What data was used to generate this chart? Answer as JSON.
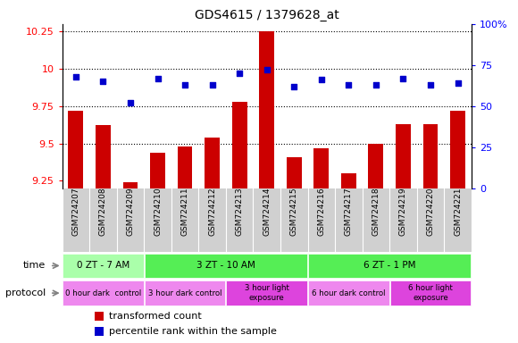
{
  "title": "GDS4615 / 1379628_at",
  "samples": [
    "GSM724207",
    "GSM724208",
    "GSM724209",
    "GSM724210",
    "GSM724211",
    "GSM724212",
    "GSM724213",
    "GSM724214",
    "GSM724215",
    "GSM724216",
    "GSM724217",
    "GSM724218",
    "GSM724219",
    "GSM724220",
    "GSM724221"
  ],
  "bar_values": [
    9.72,
    9.62,
    9.24,
    9.44,
    9.48,
    9.54,
    9.78,
    10.25,
    9.41,
    9.47,
    9.3,
    9.5,
    9.63,
    9.63,
    9.72
  ],
  "scatter_values": [
    68,
    65,
    52,
    67,
    63,
    63,
    70,
    72,
    62,
    66,
    63,
    63,
    67,
    63,
    64
  ],
  "bar_color": "#cc0000",
  "scatter_color": "#0000cc",
  "ylim_left": [
    9.2,
    10.3
  ],
  "ylim_right": [
    0,
    100
  ],
  "yticks_left": [
    9.25,
    9.5,
    9.75,
    10.0,
    10.25
  ],
  "yticks_right": [
    0,
    25,
    50,
    75,
    100
  ],
  "ytick_labels_left": [
    "9.25",
    "9.5",
    "9.75",
    "10",
    "10.25"
  ],
  "ytick_labels_right": [
    "0",
    "25",
    "50",
    "75",
    "100%"
  ],
  "dotted_lines": [
    9.5,
    9.75,
    10.0,
    10.25
  ],
  "time_groups": [
    {
      "label": "0 ZT - 7 AM",
      "start": 0,
      "end": 3,
      "color": "#aaffaa"
    },
    {
      "label": "3 ZT - 10 AM",
      "start": 3,
      "end": 9,
      "color": "#55ee55"
    },
    {
      "label": "6 ZT - 1 PM",
      "start": 9,
      "end": 15,
      "color": "#55ee55"
    }
  ],
  "protocol_groups": [
    {
      "label": "0 hour dark  control",
      "start": 0,
      "end": 3,
      "color": "#ee88ee"
    },
    {
      "label": "3 hour dark control",
      "start": 3,
      "end": 6,
      "color": "#ee88ee"
    },
    {
      "label": "3 hour light\nexposure",
      "start": 6,
      "end": 9,
      "color": "#dd44dd"
    },
    {
      "label": "6 hour dark control",
      "start": 9,
      "end": 12,
      "color": "#ee88ee"
    },
    {
      "label": "6 hour light\nexposure",
      "start": 12,
      "end": 15,
      "color": "#dd44dd"
    }
  ],
  "time_row_label": "time",
  "protocol_row_label": "protocol",
  "legend_bar_label": "transformed count",
  "legend_scatter_label": "percentile rank within the sample",
  "background_color": "#ffffff",
  "plot_bg_color": "#ffffff",
  "xticklabel_bg": "#d0d0d0"
}
